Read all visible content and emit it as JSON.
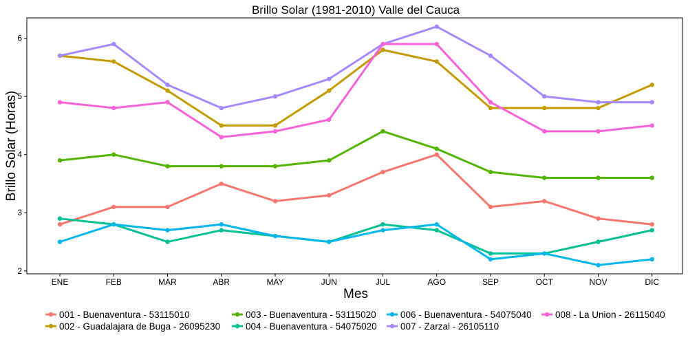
{
  "chart_data": {
    "type": "line",
    "title": "Brillo Solar (1981-2010)  Valle del Cauca",
    "xlabel": "Mes",
    "ylabel": "Brillo Solar (Horas)",
    "ylim": [
      1.95,
      6.35
    ],
    "yticks": [
      2,
      3,
      4,
      5,
      6
    ],
    "grid": false,
    "legend_position": "bottom",
    "categories": [
      "ENE",
      "FEB",
      "MAR",
      "ABR",
      "MAY",
      "JUN",
      "JUL",
      "AGO",
      "SEP",
      "OCT",
      "NOV",
      "DIC"
    ],
    "series": [
      {
        "name": "001 - Buenaventura - 53115010",
        "color": "#F8766D",
        "values": [
          2.8,
          3.1,
          3.1,
          3.5,
          3.2,
          3.3,
          3.7,
          4.0,
          3.1,
          3.2,
          2.9,
          2.8
        ]
      },
      {
        "name": "002 - Guadalajara de Buga - 26095230",
        "color": "#C49A00",
        "values": [
          5.7,
          5.6,
          5.1,
          4.5,
          4.5,
          5.1,
          5.8,
          5.6,
          4.8,
          4.8,
          4.8,
          5.2
        ]
      },
      {
        "name": "003 - Buenaventura - 53115020",
        "color": "#53B400",
        "values": [
          3.9,
          4.0,
          3.8,
          3.8,
          3.8,
          3.9,
          4.4,
          4.1,
          3.7,
          3.6,
          3.6,
          3.6
        ]
      },
      {
        "name": "004 - Buenaventura - 54075020",
        "color": "#00C094",
        "values": [
          2.9,
          2.8,
          2.5,
          2.7,
          2.6,
          2.5,
          2.8,
          2.7,
          2.3,
          2.3,
          2.5,
          2.7
        ]
      },
      {
        "name": "006 - Buenaventura - 54075040",
        "color": "#00B6EB",
        "values": [
          2.5,
          2.8,
          2.7,
          2.8,
          2.6,
          2.5,
          2.7,
          2.8,
          2.2,
          2.3,
          2.1,
          2.2
        ]
      },
      {
        "name": "007 - Zarzal - 26105110",
        "color": "#A58AFF",
        "values": [
          5.7,
          5.9,
          5.2,
          4.8,
          5.0,
          5.3,
          5.9,
          6.2,
          5.7,
          5.0,
          4.9,
          4.9
        ]
      },
      {
        "name": "008 - La Union - 26115040",
        "color": "#FB61D7",
        "values": [
          4.9,
          4.8,
          4.9,
          4.3,
          4.4,
          4.6,
          5.9,
          5.9,
          4.9,
          4.4,
          4.4,
          4.5
        ]
      }
    ]
  }
}
